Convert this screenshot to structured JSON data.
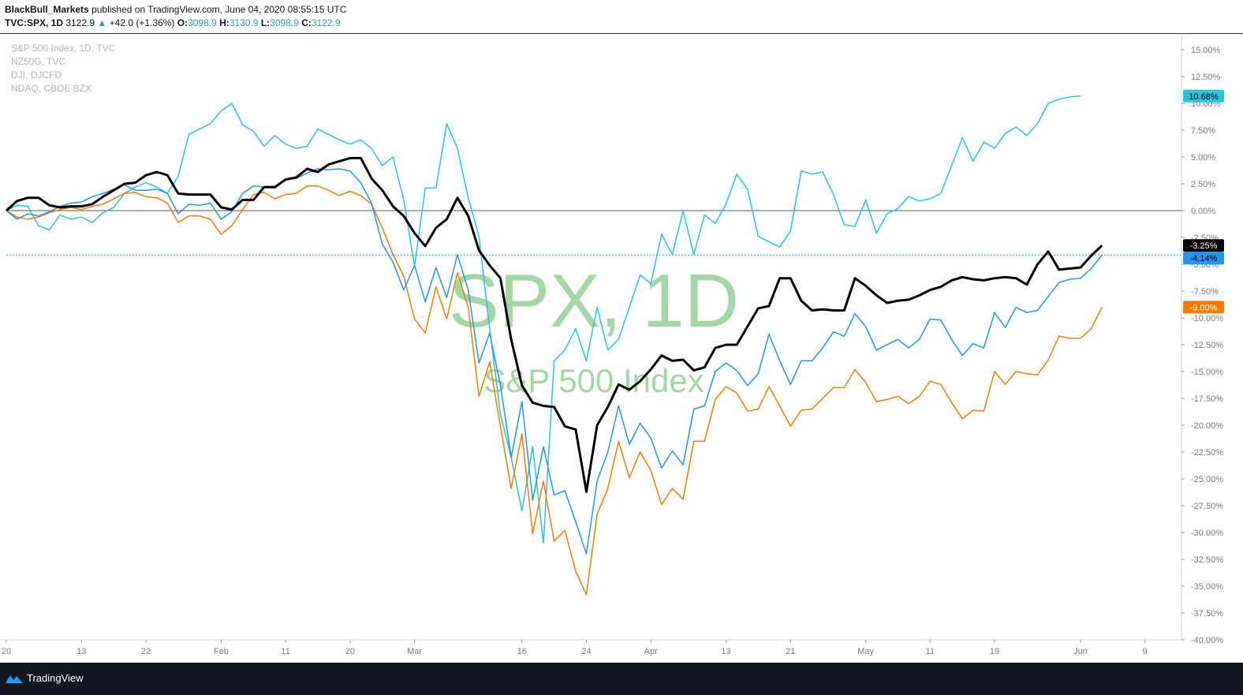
{
  "header": {
    "publisher": "BlackBull_Markets",
    "published_text": "published on TradingView.com, June 04, 2020 08:55:15 UTC",
    "symbol": "TVC:SPX, 1D",
    "last": "3122.9",
    "change": "+42.0 (+1.36%)",
    "o_label": "O:",
    "o": "3098.9",
    "h_label": "H:",
    "h": "3130.9",
    "l_label": "L:",
    "l": "3098.9",
    "c_label": "C:",
    "c": "3122.9"
  },
  "footer": {
    "brand": "TradingView"
  },
  "chart_data": {
    "type": "line",
    "watermark": {
      "title": "SPX, 1D",
      "subtitle": "S&P 500 Index"
    },
    "legend": [
      "S&P 500 Index, 1D, TVC",
      "NZ50G, TVC",
      "DJI, DJCFD",
      "NDAQ, CBOE BZX"
    ],
    "y_unit": "%",
    "ylim": [
      -40,
      16
    ],
    "y_ticks": [
      "15.00%",
      "12.50%",
      "10.00%",
      "7.50%",
      "5.00%",
      "2.50%",
      "0.00%",
      "-2.50%",
      "-5.00%",
      "-7.50%",
      "-10.00%",
      "-12.50%",
      "-15.00%",
      "-17.50%",
      "-20.00%",
      "-22.50%",
      "-25.00%",
      "-27.50%",
      "-30.00%",
      "-32.50%",
      "-35.00%",
      "-37.50%",
      "-40.00%"
    ],
    "x_ticks": [
      {
        "label": "20",
        "t": 0
      },
      {
        "label": "13",
        "t": 7
      },
      {
        "label": "22",
        "t": 13
      },
      {
        "label": "Feb",
        "t": 20
      },
      {
        "label": "11",
        "t": 26
      },
      {
        "label": "20",
        "t": 32
      },
      {
        "label": "Mar",
        "t": 38
      },
      {
        "label": "16",
        "t": 48
      },
      {
        "label": "24",
        "t": 54
      },
      {
        "label": "Apr",
        "t": 60
      },
      {
        "label": "13",
        "t": 67
      },
      {
        "label": "21",
        "t": 73
      },
      {
        "label": "May",
        "t": 80
      },
      {
        "label": "11",
        "t": 86
      },
      {
        "label": "19",
        "t": 92
      },
      {
        "label": "Jun",
        "t": 100
      },
      {
        "label": "9",
        "t": 106
      }
    ],
    "zero_line": 0,
    "ref_line": -4.14,
    "series": [
      {
        "name": "NZ50G, TVC",
        "color": "#26c6da",
        "width": 1.5,
        "last_label": "10.68%",
        "values": [
          0,
          0.5,
          0.4,
          -1.4,
          -1.8,
          -0.4,
          -0.8,
          -0.6,
          -1.1,
          -0.2,
          0.3,
          1.6,
          2.2,
          2.6,
          2.2,
          1.6,
          3.2,
          7.1,
          7.6,
          8.1,
          9.3,
          10.0,
          8.0,
          7.4,
          6.0,
          7.0,
          6.2,
          5.8,
          6.0,
          7.6,
          7.1,
          6.6,
          6.2,
          6.6,
          5.8,
          4.2,
          5.0,
          1.0,
          -5.2,
          2.1,
          2.1,
          8.1,
          5.8,
          1.2,
          -2.4,
          -11.0,
          -19.0,
          -23.0,
          -28.0,
          -22.0,
          -31.0,
          -14.0,
          -13.0,
          -11.0,
          -14.0,
          -9.0,
          -13.0,
          -12.0,
          -9.0,
          -6.0,
          -6.8,
          -2.2,
          -4.1,
          0,
          -4.1,
          -0.4,
          -1.2,
          0.6,
          3.4,
          2.0,
          -2.4,
          -2.9,
          -3.4,
          -1.9,
          3.7,
          3.4,
          3.6,
          1.5,
          -1.3,
          -1.5,
          1.0,
          -2.1,
          -0.3,
          0.2,
          1.3,
          0.9,
          1.1,
          1.6,
          4.2,
          6.8,
          4.6,
          6.4,
          5.8,
          7.2,
          7.8,
          7.0,
          8.1,
          10.0,
          10.4,
          10.6,
          10.68
        ]
      },
      {
        "name": "NDAQ, CBOE BZX",
        "color": "#f57c00",
        "width": 1.5,
        "last_label": "-9.00%",
        "values": [
          0,
          -0.6,
          -0.8,
          -0.6,
          -0.2,
          0.1,
          0.3,
          0.1,
          0.4,
          0.6,
          1.1,
          1.6,
          1.7,
          1.3,
          1.2,
          0.7,
          -1.1,
          -0.5,
          -0.5,
          -0.8,
          -2.2,
          -1.4,
          0.1,
          1.5,
          1.7,
          1.1,
          1.5,
          1.6,
          2.3,
          2.3,
          1.9,
          1.4,
          1.8,
          1.4,
          0.6,
          -1.6,
          -4.1,
          -6.1,
          -10.1,
          -11.4,
          -7.1,
          -10.1,
          -5.8,
          -9.0,
          -17.3,
          -14.1,
          -20.1,
          -25.9,
          -20.8,
          -30.1,
          -25.2,
          -30.8,
          -29.8,
          -33.6,
          -35.8,
          -28.3,
          -25.9,
          -21.5,
          -24.9,
          -22.5,
          -24.2,
          -27.4,
          -25.9,
          -26.9,
          -21.5,
          -21.5,
          -17.6,
          -16.4,
          -17.0,
          -18.7,
          -18.5,
          -16.4,
          -18.2,
          -20.1,
          -18.6,
          -18.5,
          -17.5,
          -16.5,
          -16.5,
          -14.8,
          -16.0,
          -17.8,
          -17.6,
          -17.3,
          -18.0,
          -17.3,
          -15.9,
          -16.2,
          -17.9,
          -19.4,
          -18.6,
          -18.7,
          -15.0,
          -16.2,
          -15.0,
          -15.2,
          -15.3,
          -13.9,
          -11.7,
          -11.9,
          -11.9,
          -11.0,
          -9.0
        ]
      },
      {
        "name": "DJI, DJCFD",
        "color": "#2196f3",
        "width": 1.5,
        "last_label": "-4.14%",
        "values": [
          0,
          -0.8,
          -0.3,
          -0.5,
          -0.1,
          0.4,
          0.7,
          0.8,
          1.3,
          1.6,
          2.0,
          2.4,
          1.9,
          1.9,
          2.0,
          1.6,
          -0.3,
          0.6,
          0.5,
          0.7,
          -0.8,
          -0.1,
          1.6,
          2.3,
          2.2,
          2.1,
          2.9,
          3.0,
          3.5,
          3.9,
          3.8,
          3.9,
          3.7,
          2.6,
          0.7,
          -3.1,
          -4.8,
          -7.4,
          -5.1,
          -8.5,
          -5.3,
          -8.1,
          -4.1,
          -7.4,
          -14.2,
          -11.4,
          -16.3,
          -23.0,
          -17.8,
          -27.0,
          -22.0,
          -26.5,
          -26.1,
          -29.0,
          -32.0,
          -25.2,
          -22.5,
          -18.2,
          -21.8,
          -19.8,
          -21.2,
          -24.0,
          -22.4,
          -23.7,
          -18.5,
          -18.2,
          -15.0,
          -14.2,
          -14.9,
          -16.3,
          -15.2,
          -11.5,
          -14.0,
          -16.2,
          -14.0,
          -14.0,
          -12.8,
          -11.3,
          -11.7,
          -9.6,
          -10.8,
          -13.0,
          -12.5,
          -12.0,
          -12.8,
          -12.0,
          -10.1,
          -10.2,
          -12.0,
          -13.5,
          -12.4,
          -12.8,
          -9.5,
          -10.9,
          -9.0,
          -9.5,
          -9.3,
          -8.0,
          -6.7,
          -6.4,
          -6.3,
          -5.4,
          -4.14
        ]
      },
      {
        "name": "S&P 500 Index, 1D, TVC",
        "color": "#000000",
        "width": 3,
        "last_label": "-3.25%",
        "values": [
          0,
          0.9,
          1.2,
          1.2,
          0.5,
          0.3,
          0.4,
          0.4,
          0.6,
          1.3,
          1.9,
          2.5,
          2.6,
          3.3,
          3.6,
          3.3,
          1.6,
          1.5,
          1.5,
          1.5,
          0.3,
          0.1,
          1.0,
          1.0,
          2.2,
          2.2,
          2.9,
          3.1,
          3.9,
          3.6,
          4.3,
          4.6,
          4.9,
          4.9,
          3.0,
          1.9,
          0.4,
          -0.5,
          -2.1,
          -3.3,
          -1.6,
          -0.8,
          1.2,
          -0.5,
          -3.7,
          -5.1,
          -6.3,
          -12.0,
          -16.3,
          -17.9,
          -18.2,
          -18.3,
          -20.1,
          -20.4,
          -26.2,
          -20.0,
          -18.3,
          -16.2,
          -16.7,
          -15.9,
          -14.8,
          -13.5,
          -14.0,
          -13.9,
          -14.9,
          -14.6,
          -12.8,
          -12.5,
          -12.5,
          -10.8,
          -9.1,
          -8.9,
          -6.3,
          -6.3,
          -8.4,
          -9.3,
          -9.2,
          -9.3,
          -9.3,
          -6.3,
          -7.0,
          -7.9,
          -8.6,
          -8.4,
          -8.3,
          -7.9,
          -7.4,
          -7.1,
          -6.5,
          -6.2,
          -6.4,
          -6.5,
          -6.3,
          -6.2,
          -6.3,
          -6.9,
          -5.0,
          -3.8,
          -5.5,
          -5.4,
          -5.3,
          -4.2,
          -3.25
        ]
      }
    ],
    "last_labels": [
      {
        "text": "10.68%",
        "bg": "#26c6da",
        "fg": "#000000",
        "value": 10.68
      },
      {
        "text": "-3.25%",
        "bg": "#000000",
        "fg": "#ffffff",
        "value": -3.25
      },
      {
        "text": "-4.14%",
        "bg": "#2196f3",
        "fg": "#000000",
        "value": -4.14
      },
      {
        "text": "-9.00%",
        "bg": "#f57c00",
        "fg": "#ffffff",
        "value": -9.0
      }
    ]
  }
}
